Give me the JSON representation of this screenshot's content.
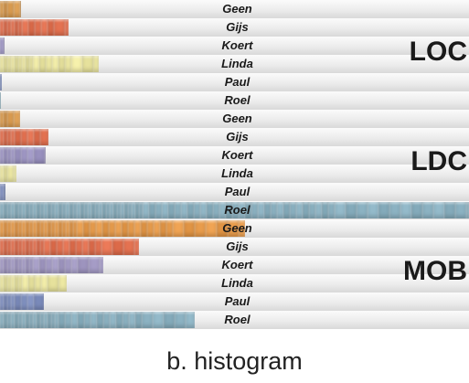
{
  "chart_data": {
    "type": "bar",
    "orientation": "horizontal",
    "caption": "b. histogram",
    "groups": [
      {
        "name": "LOC",
        "rows": [
          {
            "label": "Geen",
            "value": 23,
            "color": "#d99a4e"
          },
          {
            "label": "Gijs",
            "value": 75,
            "color": "#e2704f"
          },
          {
            "label": "Koert",
            "value": 5,
            "color": "#9e96c4"
          },
          {
            "label": "Linda",
            "value": 108,
            "color": "#ece7a2"
          },
          {
            "label": "Paul",
            "value": 2,
            "color": "#7f8fbf"
          },
          {
            "label": "Roel",
            "value": 1,
            "color": "#8ab0c0"
          }
        ]
      },
      {
        "name": "LDC",
        "rows": [
          {
            "label": "Geen",
            "value": 22,
            "color": "#d99a4e"
          },
          {
            "label": "Gijs",
            "value": 53,
            "color": "#e2704f"
          },
          {
            "label": "Koert",
            "value": 50,
            "color": "#9e96c4"
          },
          {
            "label": "Linda",
            "value": 18,
            "color": "#ece7a2"
          },
          {
            "label": "Paul",
            "value": 6,
            "color": "#7f8fbf"
          },
          {
            "label": "Roel",
            "value": 513,
            "color": "#8ab0c0"
          }
        ]
      },
      {
        "name": "MOB",
        "rows": [
          {
            "label": "Geen",
            "value": 268,
            "color": "#e69a4a"
          },
          {
            "label": "Gijs",
            "value": 152,
            "color": "#e2704f"
          },
          {
            "label": "Koert",
            "value": 113,
            "color": "#a39ac4"
          },
          {
            "label": "Linda",
            "value": 73,
            "color": "#ece7a2"
          },
          {
            "label": "Paul",
            "value": 48,
            "color": "#7f8fbf"
          },
          {
            "label": "Roel",
            "value": 213,
            "color": "#8ab0c0"
          }
        ]
      }
    ],
    "xlim": [
      0,
      513
    ],
    "axes_visible": false,
    "grid": false
  }
}
